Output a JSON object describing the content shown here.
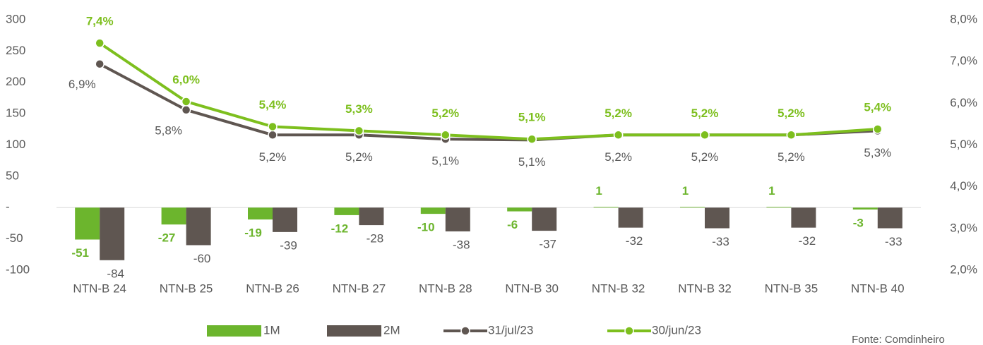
{
  "chart_data": {
    "type": "bar-line",
    "categories": [
      "NTN-B 24",
      "NTN-B 25",
      "NTN-B 26",
      "NTN-B 27",
      "NTN-B 28",
      "NTN-B 30",
      "NTN-B 32",
      "NTN-B 32",
      "NTN-B 35",
      "NTN-B 40"
    ],
    "series": [
      {
        "name": "1M",
        "type": "bar",
        "color": "#6cb52d",
        "values": [
          -51,
          -27,
          -19,
          -12,
          -10,
          -6,
          1,
          1,
          1,
          -3
        ]
      },
      {
        "name": "2M",
        "type": "bar",
        "color": "#5f5651",
        "values": [
          -84,
          -60,
          -39,
          -28,
          -38,
          -37,
          -32,
          -33,
          -32,
          -33
        ]
      },
      {
        "name": "31/jul/23",
        "type": "line",
        "axis": "y2",
        "color": "#5f5651",
        "values": [
          6.94,
          5.84,
          5.24,
          5.24,
          5.14,
          5.12,
          5.24,
          5.24,
          5.24,
          5.34
        ],
        "value_labels": [
          "6,9%",
          "5,8%",
          "5,2%",
          "5,2%",
          "5,1%",
          "5,1%",
          "5,2%",
          "5,2%",
          "5,2%",
          "5,3%"
        ]
      },
      {
        "name": "30/jun/23",
        "type": "line",
        "axis": "y2",
        "color": "#7dbf1e",
        "values": [
          7.44,
          6.04,
          5.44,
          5.34,
          5.24,
          5.14,
          5.24,
          5.24,
          5.24,
          5.38
        ],
        "value_labels": [
          "7,4%",
          "6,0%",
          "5,4%",
          "5,3%",
          "5,2%",
          "5,1%",
          "5,2%",
          "5,2%",
          "5,2%",
          "5,4%"
        ]
      }
    ],
    "ylim": [
      -100,
      300
    ],
    "yticks": [
      -100,
      -50,
      {
        "value": 0,
        "label": "-"
      },
      50,
      100,
      150,
      200,
      250,
      300
    ],
    "y2lim": [
      2,
      8
    ],
    "y2ticks": [
      {
        "value": 2,
        "label": "2,0%"
      },
      {
        "value": 3,
        "label": "3,0%"
      },
      {
        "value": 4,
        "label": "4,0%"
      },
      {
        "value": 5,
        "label": "5,0%"
      },
      {
        "value": 6,
        "label": "6,0%"
      },
      {
        "value": 7,
        "label": "7,0%"
      },
      {
        "value": 8,
        "label": "8,0%"
      }
    ],
    "legend": "bottom",
    "source": "Fonte: Comdinheiro"
  }
}
